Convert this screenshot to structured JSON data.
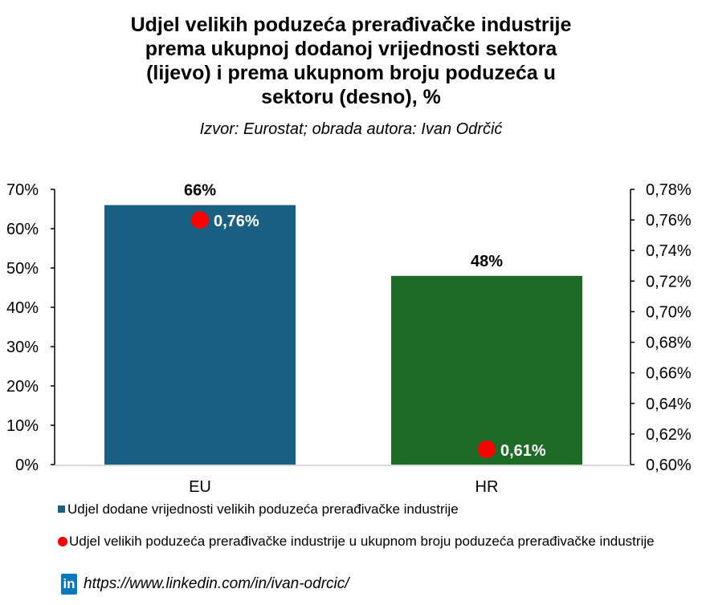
{
  "chart_data": {
    "type": "bar",
    "title_lines": [
      "Udjel velikih poduzeća prerađivačke industrije",
      "prema ukupnoj dodanoj vrijednosti sektora",
      "(lijevo) i prema ukupnom broju poduzeća u",
      "sektoru (desno), %"
    ],
    "subtitle": "Izvor: Eurostat; obrada autora: Ivan Odrčić",
    "categories": [
      "EU",
      "HR"
    ],
    "series": [
      {
        "name": "Udjel dodane vrijednosti velikih poduzeća prerađivačke industrije",
        "type": "bar",
        "axis": "left",
        "values": [
          66,
          48
        ],
        "labels": [
          "66%",
          "48%"
        ],
        "colors": [
          "#185f82",
          "#1c6b26"
        ]
      },
      {
        "name": "Udjel velikih poduzeća prerađivačke industrije u ukupnom broju poduzeća prerađivačke industrije",
        "type": "scatter",
        "axis": "right",
        "values": [
          0.76,
          0.61
        ],
        "labels": [
          "0,76%",
          "0,61%"
        ],
        "color": "#ff0000"
      }
    ],
    "left_axis": {
      "range": [
        0,
        70
      ],
      "ticks": [
        "0%",
        "10%",
        "20%",
        "30%",
        "40%",
        "50%",
        "60%",
        "70%"
      ]
    },
    "right_axis": {
      "range": [
        0.6,
        0.78
      ],
      "ticks": [
        "0,60%",
        "0,62%",
        "0,64%",
        "0,66%",
        "0,68%",
        "0,70%",
        "0,72%",
        "0,74%",
        "0,76%",
        "0,78%"
      ]
    },
    "legend": "bottom",
    "grid": false
  },
  "footer": {
    "url": "https://www.linkedin.com/in/ivan-odrcic/",
    "logo_text": "in"
  }
}
